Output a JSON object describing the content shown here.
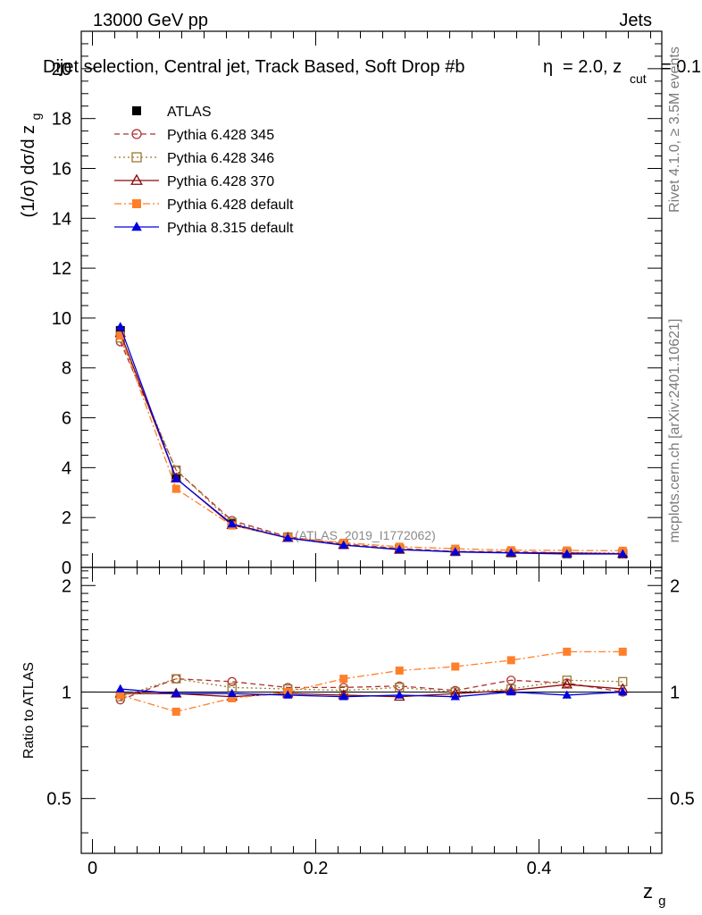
{
  "header": {
    "left": "13000 GeV pp",
    "right": "Jets",
    "title": "Dijet selection, Central jet, Track Based, Soft Drop #b",
    "title_tail": "= 2.0, z",
    "title_sub": "cut",
    "title_end": "= 0.1",
    "eta_glyph": "η"
  },
  "side_text": {
    "rivet": "Rivet 4.1.0, ≥ 3.5M events",
    "mcplots": "mcplots.cern.ch [arXiv:2401.10621]"
  },
  "watermark": "(ATLAS_2019_I1772062)",
  "chart_data": [
    {
      "type": "line",
      "panel": "main",
      "ylabel": "(1/σ) dσ/d z",
      "ylabel_sub": "g",
      "xlim": [
        -0.01,
        0.51
      ],
      "ylim": [
        0,
        21.5
      ],
      "yticks": [
        0,
        2,
        4,
        6,
        8,
        10,
        12,
        14,
        16,
        18,
        20
      ],
      "ytick_labels": [
        "0",
        "2",
        "4",
        "6",
        "8",
        "10",
        "12",
        "14",
        "16",
        "18",
        "20"
      ],
      "legend_placement": "top-left",
      "x": [
        0.025,
        0.075,
        0.125,
        0.175,
        0.225,
        0.275,
        0.325,
        0.375,
        0.425,
        0.475
      ],
      "series": [
        {
          "name": "ATLAS",
          "color": "#000000",
          "marker": "square-filled",
          "line": "none",
          "values": [
            9.5,
            3.6,
            1.75,
            1.2,
            0.92,
            0.73,
            0.64,
            0.58,
            0.55,
            0.54
          ]
        },
        {
          "name": "Pythia 6.428 345",
          "color": "#b03030",
          "marker": "circle-open",
          "line": "dashed",
          "values": [
            9.05,
            3.9,
            1.88,
            1.23,
            0.94,
            0.76,
            0.64,
            0.63,
            0.58,
            0.54
          ]
        },
        {
          "name": "Pythia 6.428 346",
          "color": "#9a7a30",
          "marker": "square-open",
          "line": "dotted",
          "values": [
            9.2,
            3.9,
            1.8,
            1.22,
            0.93,
            0.75,
            0.64,
            0.59,
            0.59,
            0.57
          ]
        },
        {
          "name": "Pythia 6.428 370",
          "color": "#8b0a0a",
          "marker": "triangle-open",
          "line": "solid",
          "values": [
            9.4,
            3.57,
            1.7,
            1.18,
            0.9,
            0.71,
            0.63,
            0.59,
            0.58,
            0.55
          ]
        },
        {
          "name": "Pythia 6.428 default",
          "color": "#ff7f2a",
          "marker": "square-filled",
          "line": "dashdot",
          "values": [
            9.3,
            3.15,
            1.68,
            1.2,
            0.99,
            0.83,
            0.75,
            0.69,
            0.68,
            0.67
          ]
        },
        {
          "name": "Pythia 8.315 default",
          "color": "#0000e0",
          "marker": "triangle-filled",
          "line": "solid",
          "values": [
            9.65,
            3.56,
            1.74,
            1.18,
            0.89,
            0.72,
            0.62,
            0.58,
            0.54,
            0.54
          ]
        }
      ]
    },
    {
      "type": "line",
      "panel": "ratio",
      "ylabel": "Ratio to ATLAS",
      "xlabel": "z",
      "xlabel_sub": "g",
      "xlim": [
        -0.01,
        0.51
      ],
      "ylim": [
        0.35,
        2.25
      ],
      "yticks": [
        0.5,
        1,
        2
      ],
      "ytick_labels": [
        "0.5",
        "1",
        "2"
      ],
      "xticks": [
        0,
        0.2,
        0.4
      ],
      "xtick_labels": [
        "0",
        "0.2",
        "0.4"
      ],
      "x": [
        0.025,
        0.075,
        0.125,
        0.175,
        0.225,
        0.275,
        0.325,
        0.375,
        0.425,
        0.475
      ],
      "series": [
        {
          "name": "Pythia 6.428 345",
          "values": [
            0.95,
            1.09,
            1.07,
            1.03,
            1.03,
            1.04,
            1.01,
            1.08,
            1.06,
            1.0
          ]
        },
        {
          "name": "Pythia 6.428 346",
          "values": [
            0.97,
            1.09,
            1.03,
            1.02,
            1.01,
            1.03,
            1.0,
            1.02,
            1.08,
            1.07
          ]
        },
        {
          "name": "Pythia 6.428 370",
          "values": [
            0.99,
            0.99,
            0.97,
            0.99,
            0.98,
            0.97,
            0.99,
            1.01,
            1.05,
            1.02
          ]
        },
        {
          "name": "Pythia 6.428 default",
          "values": [
            0.98,
            0.88,
            0.96,
            1.0,
            1.09,
            1.15,
            1.18,
            1.23,
            1.3,
            1.3
          ]
        },
        {
          "name": "Pythia 8.315 default",
          "values": [
            1.02,
            0.99,
            0.99,
            0.98,
            0.97,
            0.98,
            0.97,
            1.0,
            0.98,
            1.0
          ]
        }
      ]
    }
  ]
}
